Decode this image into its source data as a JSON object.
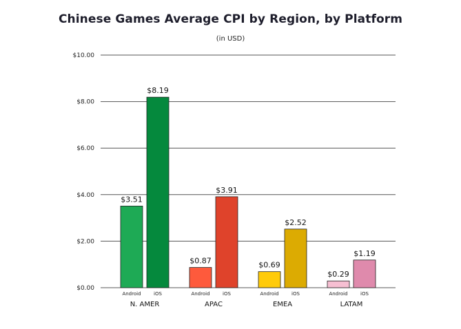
{
  "chart_data": {
    "type": "bar",
    "title": "Chinese Games Average CPI by Region, by Platform",
    "subtitle": "(in USD)",
    "xlabel": "",
    "ylabel": "",
    "ylim": [
      0,
      10
    ],
    "y_ticks": [
      "$0.00",
      "$2.00",
      "$4.00",
      "$6.00",
      "$8.00",
      "$10.00"
    ],
    "grid": true,
    "groups": [
      {
        "name": "N. AMER",
        "bars": [
          {
            "platform": "Android",
            "value": 3.51,
            "label": "$3.51",
            "color": "#1eaa55"
          },
          {
            "platform": "iOS",
            "value": 8.19,
            "label": "$8.19",
            "color": "#05893d"
          }
        ]
      },
      {
        "name": "APAC",
        "bars": [
          {
            "platform": "Android",
            "value": 0.87,
            "label": "$0.87",
            "color": "#fe5a3c"
          },
          {
            "platform": "iOS",
            "value": 3.91,
            "label": "$3.91",
            "color": "#df432b"
          }
        ]
      },
      {
        "name": "EMEA",
        "bars": [
          {
            "platform": "Android",
            "value": 0.69,
            "label": "$0.69",
            "color": "#ffcb0a"
          },
          {
            "platform": "iOS",
            "value": 2.52,
            "label": "$2.52",
            "color": "#dcab02"
          }
        ]
      },
      {
        "name": "LATAM",
        "bars": [
          {
            "platform": "Android",
            "value": 0.29,
            "label": "$0.29",
            "color": "#f6bfd2"
          },
          {
            "platform": "iOS",
            "value": 1.19,
            "label": "$1.19",
            "color": "#df8aac"
          }
        ]
      }
    ]
  }
}
